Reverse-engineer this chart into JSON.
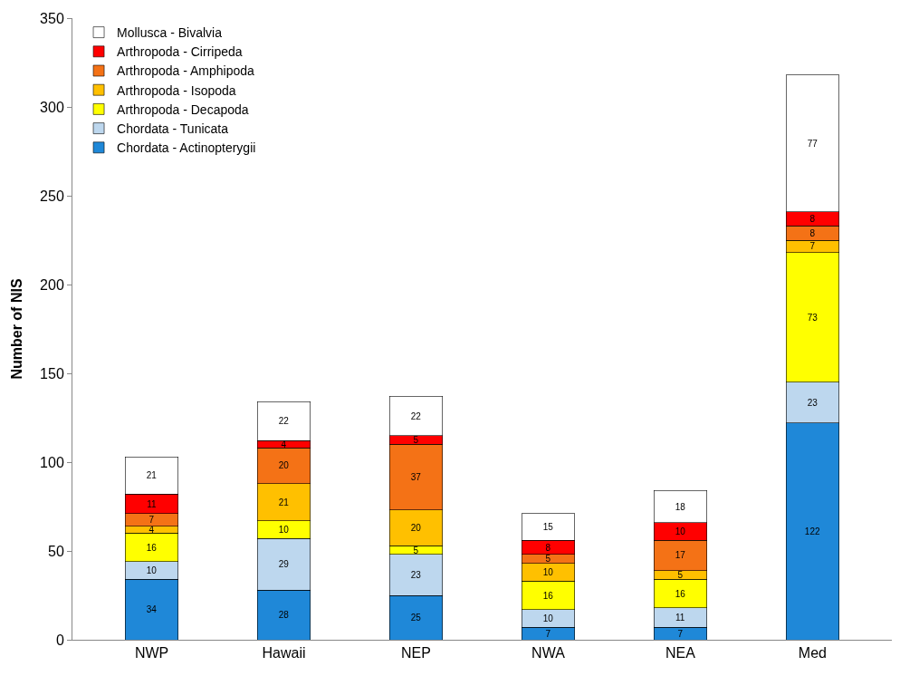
{
  "chart_data": {
    "type": "bar",
    "stacked": true,
    "ylabel": "Number of NIS",
    "categories": [
      "NWP",
      "Hawaii",
      "NEP",
      "NWA",
      "NEA",
      "Med"
    ],
    "series": [
      {
        "name": "Chordata - Actinopterygii",
        "color": "#1f88d8",
        "values": [
          34,
          28,
          25,
          7,
          7,
          122
        ]
      },
      {
        "name": "Chordata - Tunicata",
        "color": "#bdd7ee",
        "values": [
          10,
          29,
          23,
          10,
          11,
          23
        ]
      },
      {
        "name": "Arthropoda - Decapoda",
        "color": "#ffff00",
        "values": [
          16,
          10,
          5,
          16,
          16,
          73
        ]
      },
      {
        "name": "Arthropoda - Isopoda",
        "color": "#ffc000",
        "values": [
          4,
          21,
          20,
          10,
          5,
          7
        ]
      },
      {
        "name": "Arthropoda - Amphipoda",
        "color": "#f47216",
        "values": [
          7,
          20,
          37,
          5,
          17,
          8
        ]
      },
      {
        "name": "Arthropoda - Cirripeda",
        "color": "#ff0000",
        "values": [
          11,
          4,
          5,
          8,
          10,
          8
        ]
      },
      {
        "name": "Mollusca - Bivalvia",
        "color": "#ffffff",
        "values": [
          21,
          22,
          22,
          15,
          18,
          77
        ]
      }
    ],
    "ylim": [
      0,
      350
    ],
    "yticks": [
      0,
      50,
      100,
      150,
      200,
      250,
      300,
      350
    ],
    "legend": "top left",
    "data_labels": true
  }
}
